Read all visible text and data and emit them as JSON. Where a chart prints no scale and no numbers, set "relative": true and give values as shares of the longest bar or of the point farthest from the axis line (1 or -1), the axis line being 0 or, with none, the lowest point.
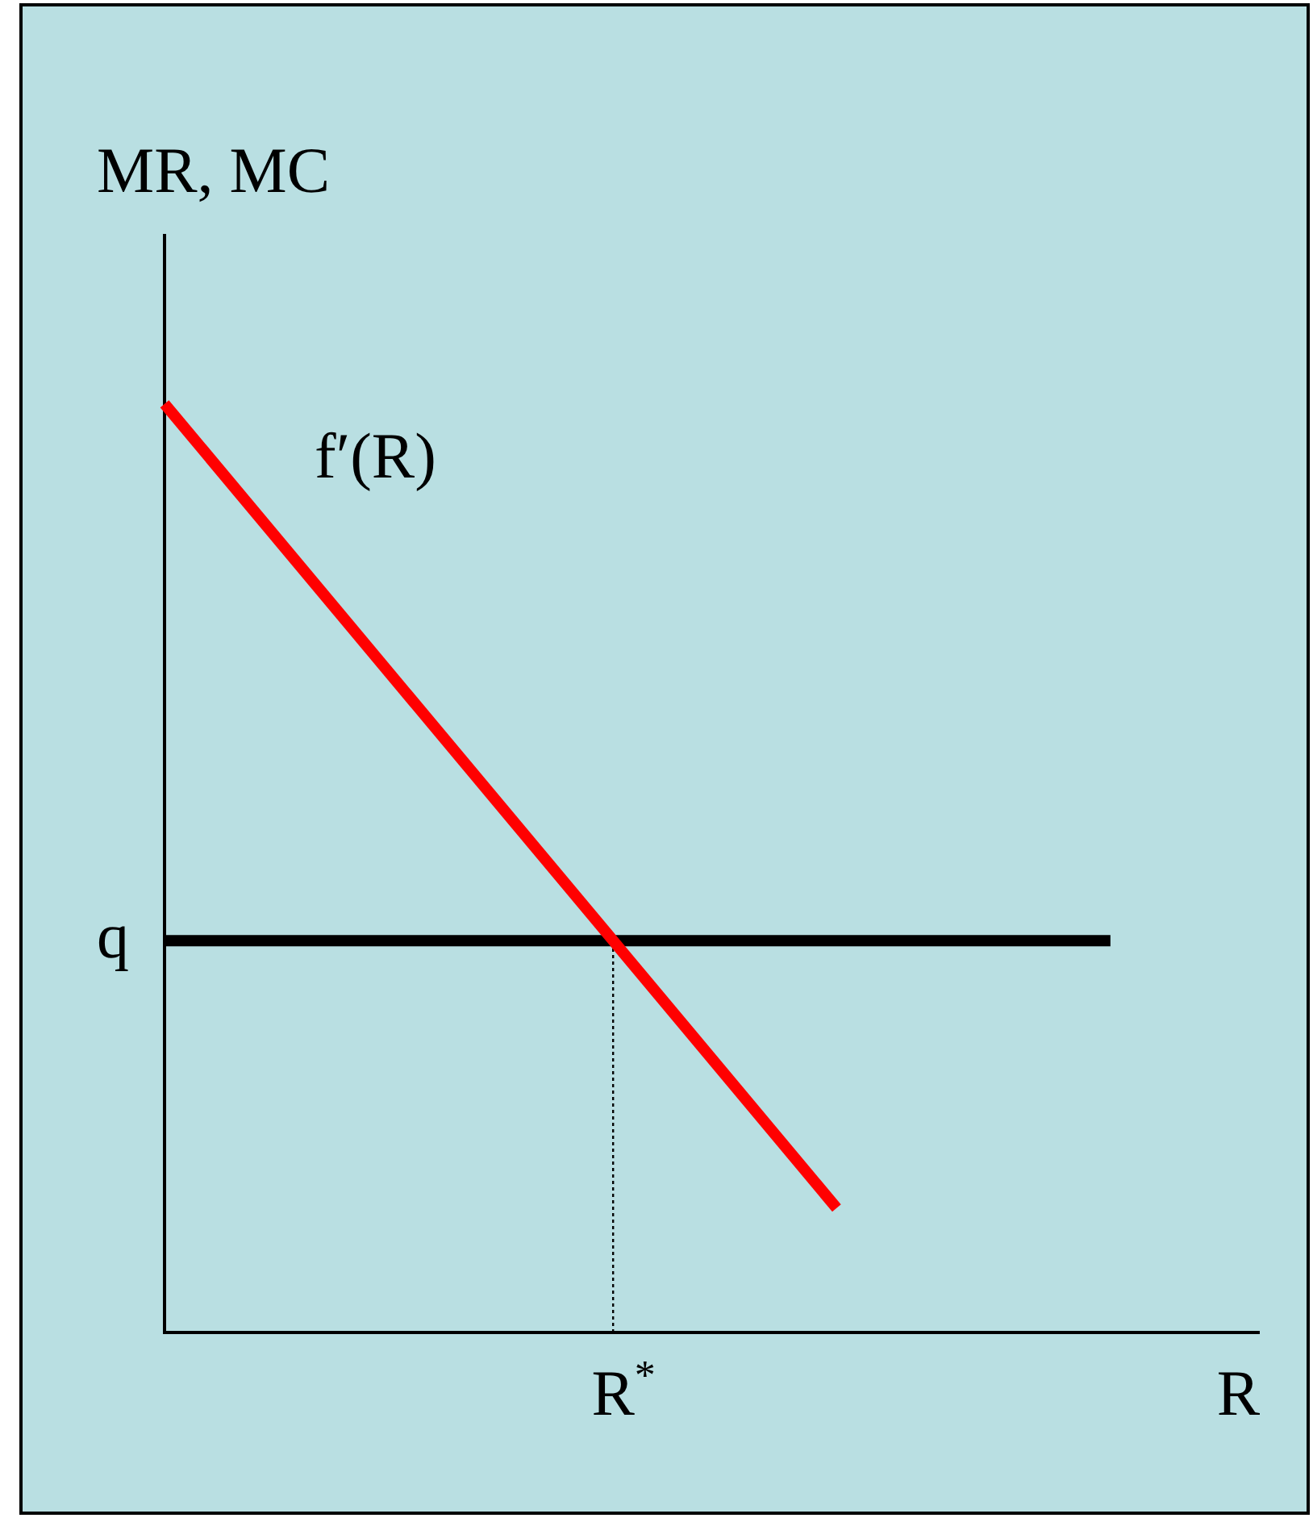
{
  "chart_data": {
    "type": "line",
    "relative": true,
    "xlabel": "R",
    "ylabel": "MR, MC",
    "legend": false,
    "marker": "none",
    "categories": [
      null,
      null,
      null,
      null,
      null,
      null,
      null,
      null,
      null,
      null,
      null,
      null,
      null,
      null,
      null,
      null,
      null,
      null,
      null,
      null,
      null,
      null,
      null,
      null,
      null,
      null,
      null,
      null,
      null,
      null,
      null,
      null,
      null,
      null,
      null,
      null,
      null,
      null,
      null,
      null,
      null,
      null,
      null,
      null,
      null
    ],
    "series": [
      {
        "name": "f′(R)",
        "color": "#ff0000",
        "values": [
          1,
          null,
          null,
          null,
          null,
          null,
          null,
          null,
          null,
          null,
          null,
          null,
          null,
          null,
          null,
          null,
          null,
          null,
          null,
          null,
          null,
          null,
          null,
          null,
          null,
          null,
          null,
          0.134,
          null,
          null,
          null,
          null,
          null,
          null,
          null,
          null,
          null,
          null,
          null,
          null,
          null,
          null,
          null,
          null,
          null
        ]
      },
      {
        "name": "q",
        "color": "#000000",
        "values": [
          0.422,
          null,
          null,
          null,
          null,
          null,
          null,
          null,
          null,
          null,
          null,
          null,
          null,
          null,
          null,
          null,
          null,
          null,
          null,
          null,
          null,
          null,
          null,
          null,
          null,
          null,
          null,
          null,
          null,
          null,
          null,
          null,
          null,
          null,
          null,
          null,
          null,
          null,
          0.422,
          null,
          null,
          null,
          null,
          null,
          null
        ]
      }
    ],
    "annotations": [
      "R$^{*}$"
    ]
  }
}
